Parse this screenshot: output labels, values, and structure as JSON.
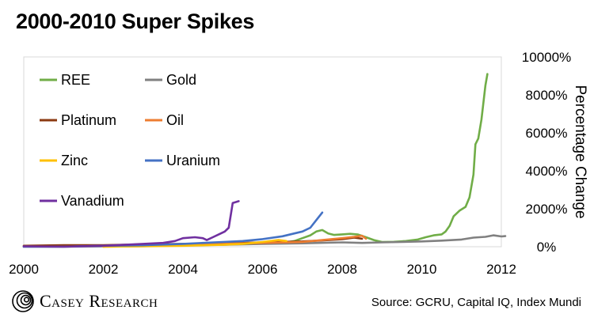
{
  "chart_data": {
    "type": "line",
    "title": "2000-2010 Super Spikes",
    "ylabel": "Percentage Change",
    "xlabel": "",
    "x_ticks": [
      "2000",
      "2002",
      "2004",
      "2006",
      "2008",
      "2010",
      "2012"
    ],
    "y_ticks": [
      "0%",
      "2000%",
      "4000%",
      "6000%",
      "8000%",
      "10000%"
    ],
    "xlim": [
      2000,
      2012
    ],
    "ylim": [
      0,
      10000
    ],
    "legend_position": "top-left",
    "grid": false,
    "series": [
      {
        "name": "REE",
        "color": "#70ad47",
        "points": [
          [
            2006.5,
            200
          ],
          [
            2006.8,
            300
          ],
          [
            2007.0,
            450
          ],
          [
            2007.2,
            600
          ],
          [
            2007.35,
            800
          ],
          [
            2007.5,
            880
          ],
          [
            2007.65,
            700
          ],
          [
            2007.8,
            620
          ],
          [
            2008.0,
            650
          ],
          [
            2008.2,
            680
          ],
          [
            2008.4,
            640
          ],
          [
            2008.6,
            500
          ],
          [
            2008.8,
            350
          ],
          [
            2009.0,
            250
          ],
          [
            2009.3,
            260
          ],
          [
            2009.6,
            300
          ],
          [
            2009.9,
            380
          ],
          [
            2010.1,
            500
          ],
          [
            2010.3,
            600
          ],
          [
            2010.5,
            650
          ],
          [
            2010.6,
            800
          ],
          [
            2010.7,
            1100
          ],
          [
            2010.8,
            1600
          ],
          [
            2010.95,
            1900
          ],
          [
            2011.1,
            2100
          ],
          [
            2011.2,
            2600
          ],
          [
            2011.3,
            3800
          ],
          [
            2011.35,
            5400
          ],
          [
            2011.42,
            5700
          ],
          [
            2011.5,
            6700
          ],
          [
            2011.6,
            8500
          ],
          [
            2011.65,
            9100
          ]
        ]
      },
      {
        "name": "Gold",
        "color": "#808080",
        "points": [
          [
            2000.0,
            0
          ],
          [
            2001.0,
            0
          ],
          [
            2002.0,
            20
          ],
          [
            2003.0,
            50
          ],
          [
            2004.0,
            80
          ],
          [
            2005.0,
            100
          ],
          [
            2006.0,
            150
          ],
          [
            2007.0,
            180
          ],
          [
            2008.0,
            230
          ],
          [
            2008.5,
            200
          ],
          [
            2009.0,
            230
          ],
          [
            2009.5,
            250
          ],
          [
            2010.0,
            280
          ],
          [
            2010.5,
            320
          ],
          [
            2011.0,
            380
          ],
          [
            2011.3,
            480
          ],
          [
            2011.6,
            520
          ],
          [
            2011.8,
            600
          ],
          [
            2012.0,
            540
          ],
          [
            2012.1,
            560
          ]
        ]
      },
      {
        "name": "Platinum",
        "color": "#8b3a12",
        "points": [
          [
            2000.0,
            50
          ],
          [
            2001.0,
            80
          ],
          [
            2002.0,
            80
          ],
          [
            2003.0,
            120
          ],
          [
            2004.0,
            150
          ],
          [
            2005.0,
            180
          ],
          [
            2006.0,
            230
          ],
          [
            2007.0,
            280
          ],
          [
            2007.5,
            330
          ],
          [
            2008.0,
            400
          ],
          [
            2008.3,
            480
          ],
          [
            2008.5,
            420
          ]
        ]
      },
      {
        "name": "Oil",
        "color": "#ed7d31",
        "points": [
          [
            2002.0,
            0
          ],
          [
            2003.0,
            30
          ],
          [
            2004.0,
            80
          ],
          [
            2005.0,
            150
          ],
          [
            2006.0,
            200
          ],
          [
            2007.0,
            250
          ],
          [
            2007.5,
            350
          ],
          [
            2008.0,
            450
          ],
          [
            2008.3,
            520
          ],
          [
            2008.5,
            580
          ],
          [
            2008.6,
            420
          ]
        ]
      },
      {
        "name": "Zinc",
        "color": "#ffc000",
        "points": [
          [
            2002.0,
            0
          ],
          [
            2003.0,
            20
          ],
          [
            2004.0,
            50
          ],
          [
            2005.0,
            100
          ],
          [
            2005.5,
            150
          ],
          [
            2006.0,
            250
          ],
          [
            2006.4,
            350
          ],
          [
            2006.6,
            300
          ]
        ]
      },
      {
        "name": "Uranium",
        "color": "#4472c4",
        "points": [
          [
            2000.0,
            0
          ],
          [
            2001.0,
            0
          ],
          [
            2002.0,
            50
          ],
          [
            2003.0,
            80
          ],
          [
            2004.0,
            150
          ],
          [
            2005.0,
            250
          ],
          [
            2005.5,
            300
          ],
          [
            2006.0,
            400
          ],
          [
            2006.5,
            550
          ],
          [
            2006.8,
            700
          ],
          [
            2007.0,
            800
          ],
          [
            2007.2,
            1000
          ],
          [
            2007.35,
            1400
          ],
          [
            2007.5,
            1800
          ]
        ]
      },
      {
        "name": "Vanadium",
        "color": "#7030a0",
        "points": [
          [
            2000.0,
            20
          ],
          [
            2001.0,
            0
          ],
          [
            2002.0,
            50
          ],
          [
            2003.0,
            150
          ],
          [
            2003.5,
            200
          ],
          [
            2003.8,
            300
          ],
          [
            2004.0,
            450
          ],
          [
            2004.3,
            500
          ],
          [
            2004.5,
            450
          ],
          [
            2004.6,
            350
          ],
          [
            2004.75,
            500
          ],
          [
            2004.9,
            650
          ],
          [
            2005.05,
            800
          ],
          [
            2005.15,
            1000
          ],
          [
            2005.25,
            2300
          ],
          [
            2005.4,
            2400
          ]
        ]
      }
    ]
  },
  "source": "Source: GCRU, Capital IQ, Index Mundi",
  "brand": {
    "name": "Casey Research",
    "logo_icon": "concentric-swirl-icon"
  }
}
